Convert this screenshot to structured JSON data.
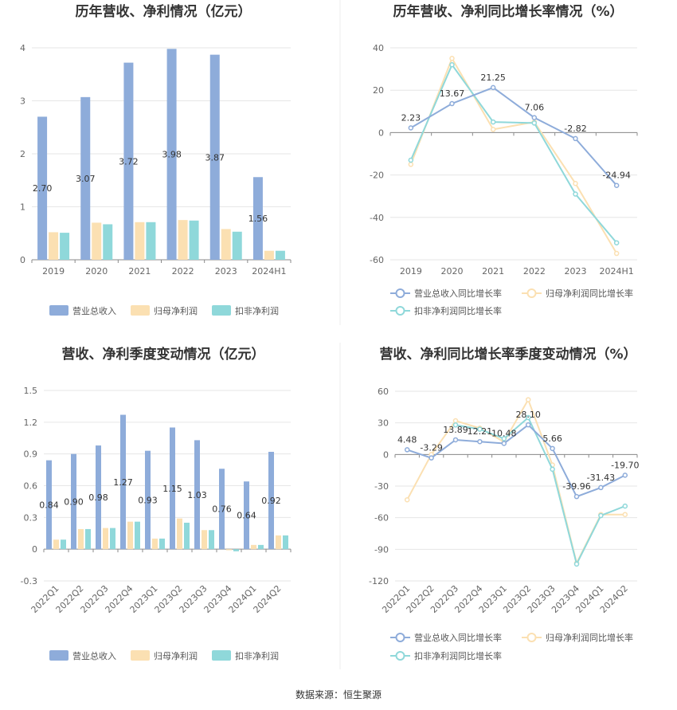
{
  "colors": {
    "revenue": "#8eacda",
    "net_profit": "#fbe0b2",
    "deducted_profit": "#8fd8da",
    "grid": "#e6e6e6",
    "axis": "#8a8a8a"
  },
  "source_text": "数据来源：恒生聚源",
  "chart_data": [
    {
      "type": "bar",
      "title": "历年营收、净利情况（亿元）",
      "categories": [
        "2019",
        "2020",
        "2021",
        "2022",
        "2023",
        "2024H1"
      ],
      "ylim": [
        0,
        4
      ],
      "yticks": [
        0,
        1,
        2,
        3,
        4
      ],
      "series": [
        {
          "name": "营业总收入",
          "values": [
            2.7,
            3.07,
            3.72,
            3.98,
            3.87,
            1.56
          ],
          "labels": [
            "2.70",
            "3.07",
            "3.72",
            "3.98",
            "3.87",
            "1.56"
          ]
        },
        {
          "name": "归母净利润",
          "values": [
            0.52,
            0.7,
            0.71,
            0.75,
            0.58,
            0.17
          ]
        },
        {
          "name": "扣非净利润",
          "values": [
            0.51,
            0.67,
            0.71,
            0.74,
            0.53,
            0.17
          ]
        }
      ],
      "grid": true,
      "legend": "bottom"
    },
    {
      "type": "line",
      "title": "历年营收、净利同比增长率情况（%）",
      "categories": [
        "2019",
        "2020",
        "2021",
        "2022",
        "2023",
        "2024H1"
      ],
      "ylim": [
        -60,
        40
      ],
      "yticks": [
        -60,
        -40,
        -20,
        0,
        20,
        40
      ],
      "series": [
        {
          "name": "营业总收入同比增长率",
          "values": [
            2.23,
            13.67,
            21.25,
            7.06,
            -2.82,
            -24.94
          ],
          "labels": [
            "2.23",
            "13.67",
            "21.25",
            "7.06",
            "-2.82",
            "-24.94"
          ]
        },
        {
          "name": "归母净利润同比增长率",
          "values": [
            -15.0,
            35.0,
            1.5,
            5.0,
            -24.0,
            -57.0
          ]
        },
        {
          "name": "扣非净利润同比增长率",
          "values": [
            -13.0,
            32.0,
            5.0,
            4.5,
            -29.0,
            -52.0
          ]
        }
      ],
      "grid": true,
      "legend": "bottom"
    },
    {
      "type": "bar",
      "title": "营收、净利季度变动情况（亿元）",
      "categories": [
        "2022Q1",
        "2022Q2",
        "2022Q3",
        "2022Q4",
        "2023Q1",
        "2023Q2",
        "2023Q3",
        "2023Q4",
        "2024Q1",
        "2024Q2"
      ],
      "ylim": [
        -0.3,
        1.5
      ],
      "yticks": [
        -0.3,
        0,
        0.3,
        0.6,
        0.9,
        1.2,
        1.5
      ],
      "series": [
        {
          "name": "营业总收入",
          "values": [
            0.84,
            0.9,
            0.98,
            1.27,
            0.93,
            1.15,
            1.03,
            0.76,
            0.64,
            0.92
          ],
          "labels": [
            "0.84",
            "0.90",
            "0.98",
            "1.27",
            "0.93",
            "1.15",
            "1.03",
            "0.76",
            "0.64",
            "0.92"
          ]
        },
        {
          "name": "归母净利润",
          "values": [
            0.09,
            0.19,
            0.2,
            0.26,
            0.1,
            0.29,
            0.18,
            -0.01,
            0.04,
            0.13
          ]
        },
        {
          "name": "扣非净利润",
          "values": [
            0.09,
            0.19,
            0.2,
            0.26,
            0.1,
            0.25,
            0.18,
            -0.02,
            0.04,
            0.13
          ]
        }
      ],
      "grid": true,
      "legend": "bottom"
    },
    {
      "type": "line",
      "title": "营收、净利同比增长率季度变动情况（%）",
      "categories": [
        "2022Q1",
        "2022Q2",
        "2022Q3",
        "2022Q4",
        "2023Q1",
        "2023Q2",
        "2023Q3",
        "2023Q4",
        "2024Q1",
        "2024Q2"
      ],
      "ylim": [
        -120,
        60
      ],
      "yticks": [
        -120,
        -90,
        -60,
        -30,
        0,
        30,
        60
      ],
      "series": [
        {
          "name": "营业总收入同比增长率",
          "values": [
            4.48,
            -3.29,
            13.89,
            12.21,
            10.48,
            28.1,
            5.66,
            -39.96,
            -31.43,
            -19.7
          ],
          "labels": [
            "4.48",
            "-3.29",
            "13.89",
            "12.21",
            "10.48",
            "28.10",
            "5.66",
            "-39.96",
            "-31.43",
            "-19.70"
          ]
        },
        {
          "name": "归母净利润同比增长率",
          "values": [
            -43.0,
            0.0,
            32.0,
            25.0,
            12.0,
            52.0,
            -10.0,
            -103.0,
            -57.0,
            -57.0
          ]
        },
        {
          "name": "扣非净利润同比增长率",
          "values": [
            null,
            null,
            28.0,
            24.0,
            15.0,
            35.0,
            -14.0,
            -104.0,
            -58.0,
            -49.0
          ]
        }
      ],
      "grid": true,
      "legend": "bottom"
    }
  ]
}
